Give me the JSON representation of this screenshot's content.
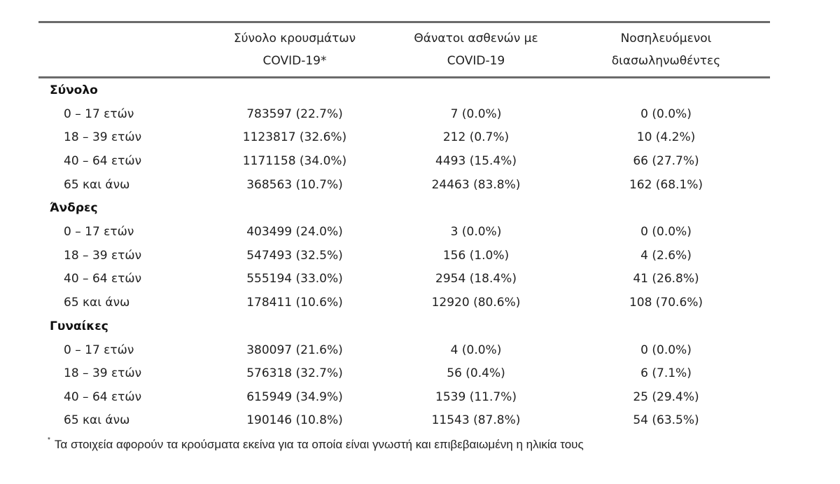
{
  "table": {
    "headers": [
      "",
      "Σύνολο κρουσμάτων\nCOVID-19*",
      "Θάνατοι ασθενών με\nCOVID-19",
      "Νοσηλευόμενοι\nδιασωληνωθέντες"
    ],
    "groups": [
      {
        "title": "Σύνολο",
        "rows": [
          {
            "label": "0 – 17 ετών",
            "cases": "783597 (22.7%)",
            "deaths": "7 (0.0%)",
            "intubated": "0 (0.0%)"
          },
          {
            "label": "18 – 39 ετών",
            "cases": "1123817 (32.6%)",
            "deaths": "212 (0.7%)",
            "intubated": "10 (4.2%)"
          },
          {
            "label": "40 – 64 ετών",
            "cases": "1171158 (34.0%)",
            "deaths": "4493 (15.4%)",
            "intubated": "66 (27.7%)"
          },
          {
            "label": "65 και άνω",
            "cases": "368563 (10.7%)",
            "deaths": "24463 (83.8%)",
            "intubated": "162 (68.1%)"
          }
        ]
      },
      {
        "title": "Άνδρες",
        "rows": [
          {
            "label": "0 – 17 ετών",
            "cases": "403499 (24.0%)",
            "deaths": "3 (0.0%)",
            "intubated": "0 (0.0%)"
          },
          {
            "label": "18 – 39 ετών",
            "cases": "547493 (32.5%)",
            "deaths": "156 (1.0%)",
            "intubated": "4 (2.6%)"
          },
          {
            "label": "40 – 64 ετών",
            "cases": "555194 (33.0%)",
            "deaths": "2954 (18.4%)",
            "intubated": "41 (26.8%)"
          },
          {
            "label": "65 και άνω",
            "cases": "178411 (10.6%)",
            "deaths": "12920 (80.6%)",
            "intubated": "108 (70.6%)"
          }
        ]
      },
      {
        "title": "Γυναίκες",
        "rows": [
          {
            "label": "0 – 17 ετών",
            "cases": "380097 (21.6%)",
            "deaths": "4 (0.0%)",
            "intubated": "0 (0.0%)"
          },
          {
            "label": "18 – 39 ετών",
            "cases": "576318 (32.7%)",
            "deaths": "56 (0.4%)",
            "intubated": "6 (7.1%)"
          },
          {
            "label": "40 – 64 ετών",
            "cases": "615949 (34.9%)",
            "deaths": "1539 (11.7%)",
            "intubated": "25 (29.4%)"
          },
          {
            "label": "65 και άνω",
            "cases": "190146 (10.8%)",
            "deaths": "11543 (87.8%)",
            "intubated": "54 (63.5%)"
          }
        ]
      }
    ]
  },
  "footnote": {
    "marker": "*",
    "text": "Τα στοιχεία αφορούν τα κρούσματα εκείνα για τα οποία είναι γνωστή και επιβεβαιωμένη η ηλικία τους"
  }
}
